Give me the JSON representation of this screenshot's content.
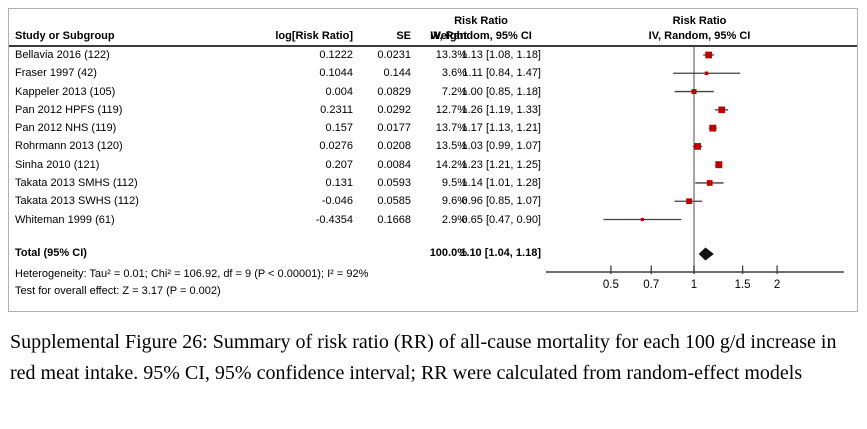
{
  "chart_data": {
    "type": "forest",
    "axis_scale": "log",
    "axis_ticks": [
      0.5,
      0.7,
      1,
      1.5,
      2
    ],
    "marker_color": "#c00000",
    "line_color": "#3f3f3f",
    "null_line_color": "#808080",
    "diamond_color": "#111111",
    "header": {
      "study": "Study or Subgroup",
      "log_rr": "log[Risk Ratio]",
      "se": "SE",
      "weight": "Weight",
      "rr_line1": "Risk Ratio",
      "rr_line2": "IV, Random, 95% CI",
      "plot_line1": "Risk Ratio",
      "plot_line2": "IV, Random, 95% CI"
    },
    "studies": [
      {
        "name": "Bellavia 2016 (122)",
        "log_rr": "0.1222",
        "se": "0.0231",
        "weight": "13.3%",
        "rr_ci": "1.13 [1.08, 1.18]",
        "rr": 1.13,
        "ci_low": 1.08,
        "ci_high": 1.18,
        "weight_pct": 13.3
      },
      {
        "name": "Fraser 1997 (42)",
        "log_rr": "0.1044",
        "se": "0.144",
        "weight": "3.6%",
        "rr_ci": "1.11 [0.84, 1.47]",
        "rr": 1.11,
        "ci_low": 0.84,
        "ci_high": 1.47,
        "weight_pct": 3.6
      },
      {
        "name": "Kappeler 2013 (105)",
        "log_rr": "0.004",
        "se": "0.0829",
        "weight": "7.2%",
        "rr_ci": "1.00 [0.85, 1.18]",
        "rr": 1.0,
        "ci_low": 0.85,
        "ci_high": 1.18,
        "weight_pct": 7.2
      },
      {
        "name": "Pan 2012 HPFS (119)",
        "log_rr": "0.2311",
        "se": "0.0292",
        "weight": "12.7%",
        "rr_ci": "1.26 [1.19, 1.33]",
        "rr": 1.26,
        "ci_low": 1.19,
        "ci_high": 1.33,
        "weight_pct": 12.7
      },
      {
        "name": "Pan 2012 NHS (119)",
        "log_rr": "0.157",
        "se": "0.0177",
        "weight": "13.7%",
        "rr_ci": "1.17 [1.13, 1.21]",
        "rr": 1.17,
        "ci_low": 1.13,
        "ci_high": 1.21,
        "weight_pct": 13.7
      },
      {
        "name": "Rohrmann 2013 (120)",
        "log_rr": "0.0276",
        "se": "0.0208",
        "weight": "13.5%",
        "rr_ci": "1.03 [0.99, 1.07]",
        "rr": 1.03,
        "ci_low": 0.99,
        "ci_high": 1.07,
        "weight_pct": 13.5
      },
      {
        "name": "Sinha 2010 (121)",
        "log_rr": "0.207",
        "se": "0.0084",
        "weight": "14.2%",
        "rr_ci": "1.23 [1.21, 1.25]",
        "rr": 1.23,
        "ci_low": 1.21,
        "ci_high": 1.25,
        "weight_pct": 14.2
      },
      {
        "name": "Takata 2013 SMHS (112)",
        "log_rr": "0.131",
        "se": "0.0593",
        "weight": "9.5%",
        "rr_ci": "1.14 [1.01, 1.28]",
        "rr": 1.14,
        "ci_low": 1.01,
        "ci_high": 1.28,
        "weight_pct": 9.5
      },
      {
        "name": "Takata 2013 SWHS (112)",
        "log_rr": "-0.046",
        "se": "0.0585",
        "weight": "9.6%",
        "rr_ci": "0.96 [0.85, 1.07]",
        "rr": 0.96,
        "ci_low": 0.85,
        "ci_high": 1.07,
        "weight_pct": 9.6
      },
      {
        "name": "Whiteman 1999 (61)",
        "log_rr": "-0.4354",
        "se": "0.1668",
        "weight": "2.9%",
        "rr_ci": "0.65 [0.47, 0.90]",
        "rr": 0.65,
        "ci_low": 0.47,
        "ci_high": 0.9,
        "weight_pct": 2.9
      }
    ],
    "total": {
      "label": "Total (95% CI)",
      "weight": "100.0%",
      "rr_ci": "1.10 [1.04, 1.18]",
      "rr": 1.1,
      "ci_low": 1.04,
      "ci_high": 1.18
    },
    "heterogeneity": "Heterogeneity: Tau² = 0.01; Chi² = 106.92, df = 9 (P < 0.00001); I² = 92%",
    "overall_effect": "Test for overall effect: Z = 3.17 (P = 0.002)"
  },
  "caption": "Supplemental Figure 26: Summary of risk ratio (RR) of all-cause mortality for each 100 g/d increase in red meat intake. 95% CI, 95% confidence interval; RR were calculated from random-effect models"
}
